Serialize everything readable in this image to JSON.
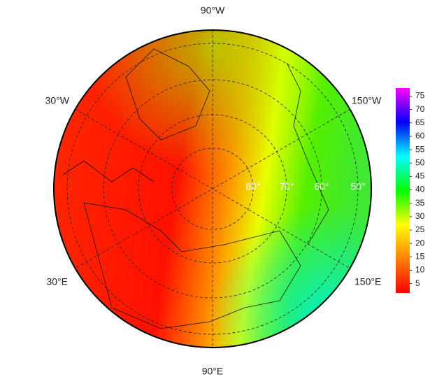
{
  "map": {
    "meridian_labels": [
      "90°W",
      "150°W",
      "150°E",
      "90°E",
      "30°E",
      "30°W"
    ],
    "latitude_labels": [
      "80°",
      "70°",
      "60°",
      "50°"
    ]
  },
  "colorbar": {
    "lim": [
      1.5,
      78
    ],
    "ticks": [
      5,
      10,
      15,
      20,
      25,
      30,
      35,
      40,
      45,
      50,
      55,
      60,
      65,
      70,
      75
    ],
    "colors": [
      "#ff0000",
      "#ff8000",
      "#ffff00",
      "#00ff00",
      "#00ffff",
      "#0000ff",
      "#ff00ff"
    ]
  }
}
